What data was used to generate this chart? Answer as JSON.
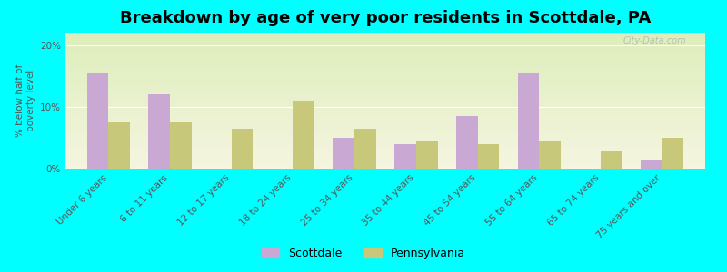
{
  "title": "Breakdown by age of very poor residents in Scottdale, PA",
  "ylabel": "% below half of\npoverty level",
  "categories": [
    "Under 6 years",
    "6 to 11 years",
    "12 to 17 years",
    "18 to 24 years",
    "25 to 34 years",
    "35 to 44 years",
    "45 to 54 years",
    "55 to 64 years",
    "65 to 74 years",
    "75 years and over"
  ],
  "scottdale": [
    15.5,
    12.0,
    0,
    0,
    5.0,
    4.0,
    8.5,
    15.5,
    0,
    1.5
  ],
  "pennsylvania": [
    7.5,
    7.5,
    6.5,
    11.0,
    6.5,
    4.5,
    4.0,
    4.5,
    3.0,
    5.0
  ],
  "scottdale_color": "#c9a8d4",
  "pennsylvania_color": "#c8c87a",
  "background_color": "#00ffff",
  "plot_bg_color_top": "#ddeebb",
  "plot_bg_color_bottom": "#f5f5e0",
  "ylim": [
    0,
    22
  ],
  "yticks": [
    0,
    10,
    20
  ],
  "ytick_labels": [
    "0%",
    "10%",
    "20%"
  ],
  "bar_width": 0.35,
  "title_fontsize": 13,
  "tick_fontsize": 7.5,
  "legend_fontsize": 9,
  "watermark": "City-Data.com"
}
